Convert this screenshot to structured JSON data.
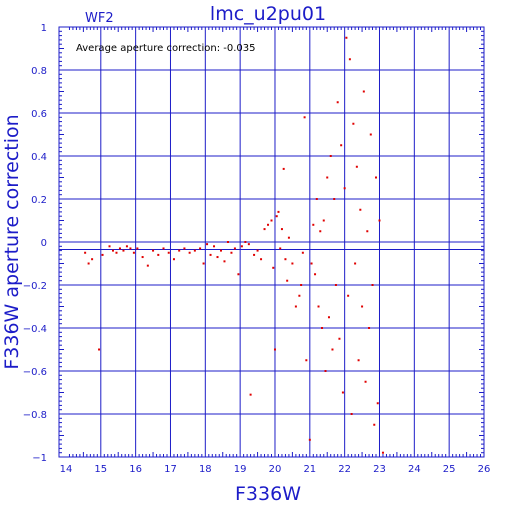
{
  "chart_data": {
    "type": "scatter",
    "title": "lmc_u2pu01",
    "subtitle": "WF2",
    "annotation": "Average aperture correction: -0.035",
    "xlabel": "F336W",
    "ylabel": "F336W aperture correction",
    "xlim": [
      13.8,
      26
    ],
    "ylim": [
      -1,
      1
    ],
    "x_ticks": [
      "14",
      "15",
      "16",
      "17",
      "18",
      "19",
      "20",
      "21",
      "22",
      "23",
      "24",
      "25",
      "26"
    ],
    "y_ticks": [
      "1",
      "0.8",
      "0.6",
      "0.4",
      "0.2",
      "0",
      "−0.2",
      "−0.4",
      "−0.6",
      "−0.8",
      "−1"
    ],
    "grid": true,
    "reference_lines": [
      0,
      -0.035
    ],
    "colors": {
      "axes": "#1c1cc8",
      "points": "#e00000",
      "annotation": "#000000"
    },
    "points": [
      [
        14.55,
        -0.05
      ],
      [
        14.65,
        -0.1
      ],
      [
        14.75,
        -0.08
      ],
      [
        14.95,
        -0.5
      ],
      [
        15.05,
        -0.06
      ],
      [
        15.25,
        -0.02
      ],
      [
        15.35,
        -0.04
      ],
      [
        15.45,
        -0.05
      ],
      [
        15.55,
        -0.03
      ],
      [
        15.65,
        -0.04
      ],
      [
        15.75,
        -0.02
      ],
      [
        15.85,
        -0.03
      ],
      [
        15.95,
        -0.05
      ],
      [
        16.05,
        -0.03
      ],
      [
        16.2,
        -0.07
      ],
      [
        16.35,
        -0.11
      ],
      [
        16.5,
        -0.04
      ],
      [
        16.65,
        -0.06
      ],
      [
        16.8,
        -0.03
      ],
      [
        16.95,
        -0.05
      ],
      [
        17.1,
        -0.08
      ],
      [
        17.25,
        -0.04
      ],
      [
        17.4,
        -0.03
      ],
      [
        17.55,
        -0.05
      ],
      [
        17.7,
        -0.04
      ],
      [
        17.85,
        -0.03
      ],
      [
        17.95,
        -0.1
      ],
      [
        18.05,
        -0.01
      ],
      [
        18.15,
        -0.06
      ],
      [
        18.25,
        -0.02
      ],
      [
        18.35,
        -0.07
      ],
      [
        18.45,
        -0.04
      ],
      [
        18.55,
        -0.09
      ],
      [
        18.65,
        0.0
      ],
      [
        18.75,
        -0.05
      ],
      [
        18.85,
        -0.03
      ],
      [
        18.95,
        -0.15
      ],
      [
        19.05,
        -0.02
      ],
      [
        19.15,
        0.0
      ],
      [
        19.25,
        -0.01
      ],
      [
        19.3,
        -0.71
      ],
      [
        19.4,
        -0.06
      ],
      [
        19.5,
        -0.04
      ],
      [
        19.6,
        -0.08
      ],
      [
        19.7,
        0.06
      ],
      [
        19.8,
        0.08
      ],
      [
        19.9,
        0.1
      ],
      [
        19.95,
        -0.12
      ],
      [
        20.0,
        -0.5
      ],
      [
        20.05,
        0.12
      ],
      [
        20.1,
        0.14
      ],
      [
        20.15,
        -0.03
      ],
      [
        20.2,
        0.06
      ],
      [
        20.25,
        0.34
      ],
      [
        20.3,
        -0.08
      ],
      [
        20.35,
        -0.18
      ],
      [
        20.4,
        0.02
      ],
      [
        20.5,
        -0.1
      ],
      [
        20.6,
        -0.3
      ],
      [
        20.7,
        -0.25
      ],
      [
        20.75,
        -0.2
      ],
      [
        20.8,
        -0.05
      ],
      [
        20.85,
        0.58
      ],
      [
        20.9,
        -0.55
      ],
      [
        21.0,
        -0.92
      ],
      [
        21.05,
        -0.1
      ],
      [
        21.1,
        0.08
      ],
      [
        21.15,
        -0.15
      ],
      [
        21.2,
        0.2
      ],
      [
        21.25,
        -0.3
      ],
      [
        21.3,
        0.05
      ],
      [
        21.35,
        -0.4
      ],
      [
        21.4,
        0.1
      ],
      [
        21.45,
        -0.6
      ],
      [
        21.5,
        0.3
      ],
      [
        21.55,
        -0.35
      ],
      [
        21.6,
        0.4
      ],
      [
        21.65,
        -0.5
      ],
      [
        21.7,
        0.2
      ],
      [
        21.75,
        -0.2
      ],
      [
        21.8,
        0.65
      ],
      [
        21.85,
        -0.45
      ],
      [
        21.9,
        0.45
      ],
      [
        21.95,
        -0.7
      ],
      [
        22.0,
        0.25
      ],
      [
        22.05,
        0.95
      ],
      [
        22.1,
        -0.25
      ],
      [
        22.15,
        0.85
      ],
      [
        22.2,
        -0.8
      ],
      [
        22.25,
        0.55
      ],
      [
        22.3,
        -0.1
      ],
      [
        22.35,
        0.35
      ],
      [
        22.4,
        -0.55
      ],
      [
        22.45,
        0.15
      ],
      [
        22.5,
        -0.3
      ],
      [
        22.55,
        0.7
      ],
      [
        22.6,
        -0.65
      ],
      [
        22.65,
        0.05
      ],
      [
        22.7,
        -0.4
      ],
      [
        22.75,
        0.5
      ],
      [
        22.8,
        -0.2
      ],
      [
        22.85,
        -0.85
      ],
      [
        22.9,
        0.3
      ],
      [
        22.95,
        -0.75
      ],
      [
        23.0,
        0.1
      ],
      [
        23.1,
        -0.98
      ]
    ]
  }
}
